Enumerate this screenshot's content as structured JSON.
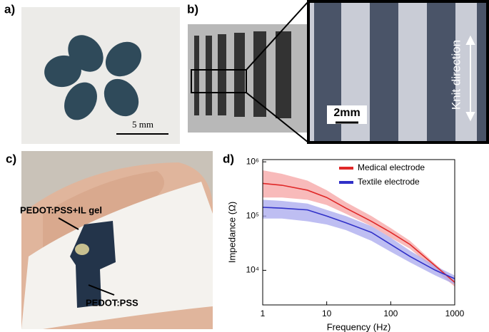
{
  "panels": {
    "a": {
      "label": "a)",
      "scale_bar": "5 mm"
    },
    "b": {
      "label": "b)",
      "scale_bar": "2mm",
      "annotation": "Knit direction"
    },
    "c": {
      "label": "c)",
      "annotations": [
        "PEDOT:PSS+IL gel",
        "PEDOT:PSS"
      ]
    },
    "d": {
      "label": "d)"
    }
  },
  "chart_data": {
    "type": "line",
    "xlabel": "Frequency (Hz)",
    "ylabel": "Impedance (Ω)",
    "log_x": true,
    "log_y": true,
    "xlim": [
      1,
      1000
    ],
    "ylim": [
      2300,
      1100000
    ],
    "xticks": [
      1,
      10,
      100,
      1000
    ],
    "yticks": [
      {
        "value": 10000,
        "label": "10⁴"
      },
      {
        "value": 100000,
        "label": "10⁵"
      },
      {
        "value": 1000000,
        "label": "10⁶"
      }
    ],
    "legend": "upper right",
    "x": [
      1,
      2,
      5,
      10,
      20,
      50,
      100,
      200,
      500,
      1000
    ],
    "series": [
      {
        "name": "Medical electrode",
        "color": "#e02828",
        "band_color": "#f5a3a3",
        "values": [
          400000,
          370000,
          300000,
          220000,
          140000,
          80000,
          50000,
          30000,
          12000,
          6000
        ],
        "upper": [
          700000,
          600000,
          450000,
          300000,
          180000,
          100000,
          60000,
          35000,
          13000,
          6500
        ],
        "lower": [
          220000,
          220000,
          200000,
          160000,
          110000,
          65000,
          40000,
          25000,
          10000,
          5000
        ]
      },
      {
        "name": "Textile electrode",
        "color": "#3030c8",
        "band_color": "#a8a8ee",
        "values": [
          145000,
          140000,
          130000,
          100000,
          75000,
          50000,
          30000,
          18000,
          10000,
          7000
        ],
        "upper": [
          200000,
          190000,
          170000,
          130000,
          100000,
          65000,
          40000,
          23000,
          12000,
          8000
        ],
        "lower": [
          90000,
          90000,
          80000,
          70000,
          55000,
          35000,
          22000,
          14000,
          8000,
          5500
        ]
      }
    ]
  }
}
